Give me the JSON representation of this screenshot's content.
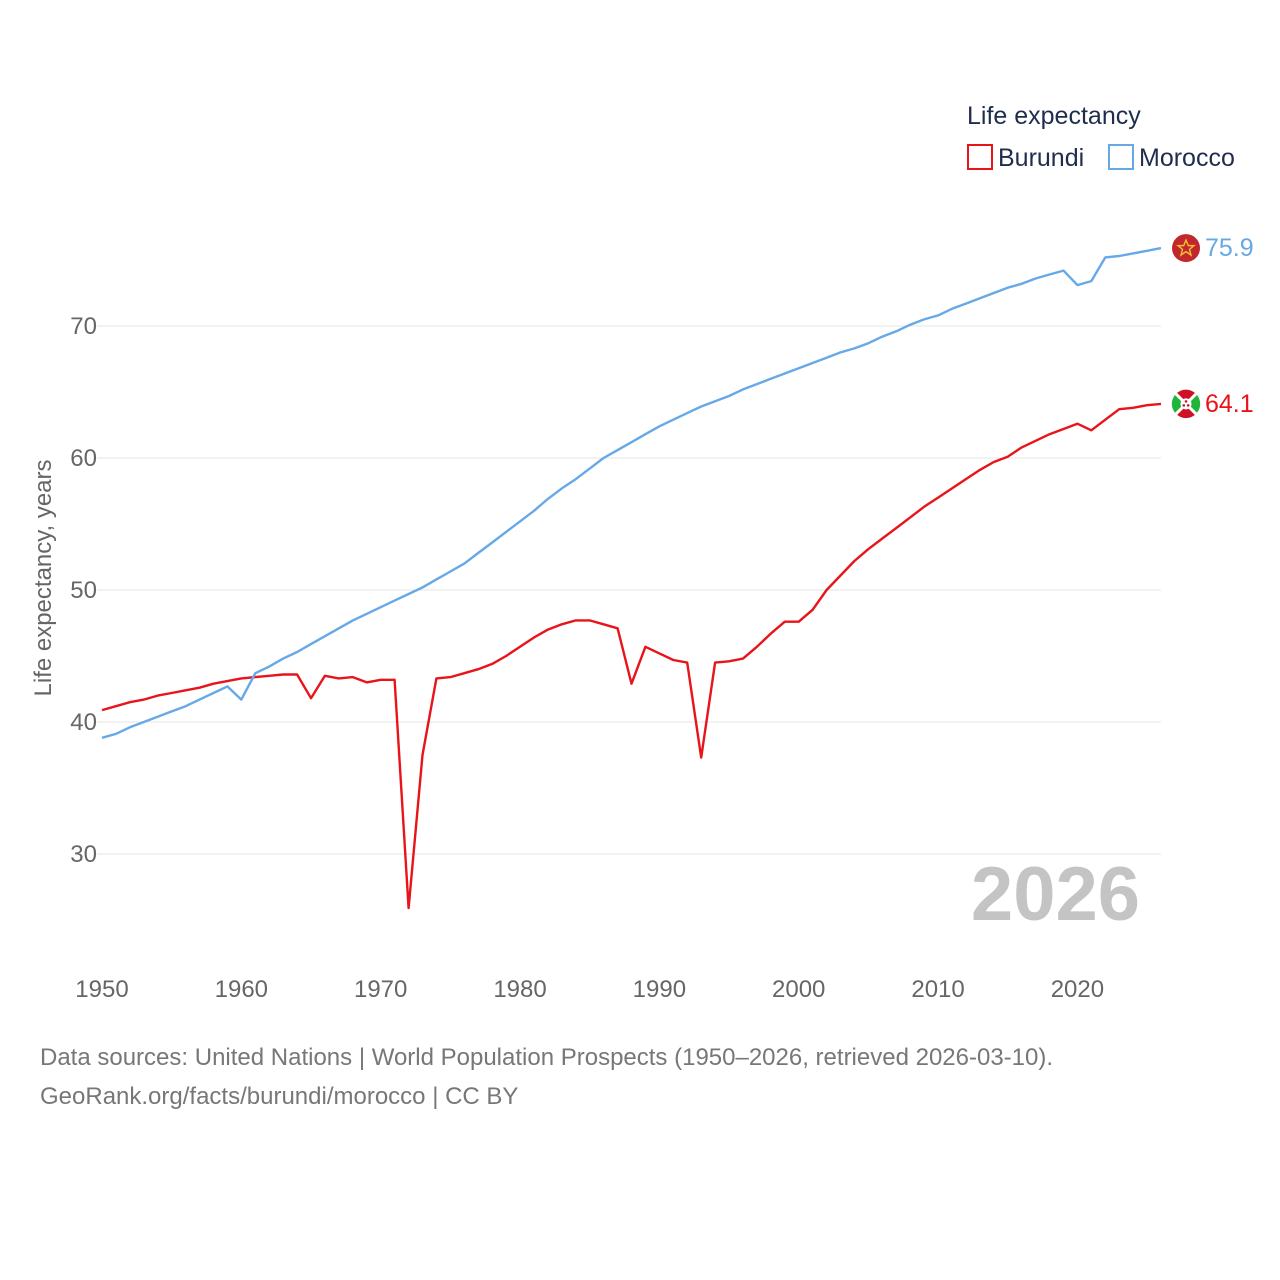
{
  "chart_data": {
    "type": "line",
    "ylabel": "Life expectancy, years",
    "xlabel": "",
    "legend_title": "Life expectancy",
    "legend_position": "top-right",
    "year_label": "2026",
    "xlim": [
      1950,
      2026
    ],
    "ylim": [
      22,
      78
    ],
    "x_ticks": [
      1950,
      1960,
      1970,
      1980,
      1990,
      2000,
      2010,
      2020
    ],
    "y_ticks": [
      30,
      40,
      50,
      60,
      70
    ],
    "x_tick_labels": [
      "1950",
      "1960",
      "1970",
      "1980",
      "1990",
      "2000",
      "2010",
      "2020"
    ],
    "y_tick_labels": [
      "30",
      "40",
      "50",
      "60",
      "70"
    ],
    "grid": true,
    "x": [
      1950,
      1951,
      1952,
      1953,
      1954,
      1955,
      1956,
      1957,
      1958,
      1959,
      1960,
      1961,
      1962,
      1963,
      1964,
      1965,
      1966,
      1967,
      1968,
      1969,
      1970,
      1971,
      1972,
      1973,
      1974,
      1975,
      1976,
      1977,
      1978,
      1979,
      1980,
      1981,
      1982,
      1983,
      1984,
      1985,
      1986,
      1987,
      1988,
      1989,
      1990,
      1991,
      1992,
      1993,
      1994,
      1995,
      1996,
      1997,
      1998,
      1999,
      2000,
      2001,
      2002,
      2003,
      2004,
      2005,
      2006,
      2007,
      2008,
      2009,
      2010,
      2011,
      2012,
      2013,
      2014,
      2015,
      2016,
      2017,
      2018,
      2019,
      2020,
      2021,
      2022,
      2023,
      2024,
      2025,
      2026
    ],
    "series": [
      {
        "name": "Burundi",
        "color": "#e8141a",
        "end_label": "64.1",
        "values": [
          40.9,
          41.2,
          41.5,
          41.7,
          42.0,
          42.2,
          42.4,
          42.6,
          42.9,
          43.1,
          43.3,
          43.4,
          43.5,
          43.6,
          43.6,
          41.8,
          43.5,
          43.3,
          43.4,
          43.0,
          43.2,
          43.2,
          25.9,
          37.5,
          43.3,
          43.4,
          43.7,
          44.0,
          44.4,
          45.0,
          45.7,
          46.4,
          47.0,
          47.4,
          47.7,
          47.7,
          47.4,
          47.1,
          42.9,
          45.7,
          45.2,
          44.7,
          44.5,
          37.3,
          44.5,
          44.6,
          44.8,
          45.7,
          46.7,
          47.6,
          47.6,
          48.5,
          50.0,
          51.1,
          52.2,
          53.1,
          53.9,
          54.7,
          55.5,
          56.3,
          57.0,
          57.7,
          58.4,
          59.1,
          59.7,
          60.1,
          60.8,
          61.3,
          61.8,
          62.2,
          62.6,
          62.1,
          62.9,
          63.7,
          63.8,
          64.0,
          64.1
        ]
      },
      {
        "name": "Morocco",
        "color": "#66a9e6",
        "end_label": "75.9",
        "values": [
          38.8,
          39.1,
          39.6,
          40.0,
          40.4,
          40.8,
          41.2,
          41.7,
          42.2,
          42.7,
          41.7,
          43.7,
          44.2,
          44.8,
          45.3,
          45.9,
          46.5,
          47.1,
          47.7,
          48.2,
          48.7,
          49.2,
          49.7,
          50.2,
          50.8,
          51.4,
          52.0,
          52.8,
          53.6,
          54.4,
          55.2,
          56.0,
          56.9,
          57.7,
          58.4,
          59.2,
          60.0,
          60.6,
          61.2,
          61.8,
          62.4,
          62.9,
          63.4,
          63.9,
          64.3,
          64.7,
          65.2,
          65.6,
          66.0,
          66.4,
          66.8,
          67.2,
          67.6,
          68.0,
          68.3,
          68.7,
          69.2,
          69.6,
          70.1,
          70.5,
          70.8,
          71.3,
          71.7,
          72.1,
          72.5,
          72.9,
          73.2,
          73.6,
          73.9,
          74.2,
          73.1,
          73.4,
          75.2,
          75.3,
          75.5,
          75.7,
          75.9
        ]
      }
    ]
  },
  "footer": {
    "line1": "Data sources: United Nations | World Population Prospects (1950–2026, retrieved 2026-03-10).",
    "line2": "GeoRank.org/facts/burundi/morocco | CC BY"
  }
}
